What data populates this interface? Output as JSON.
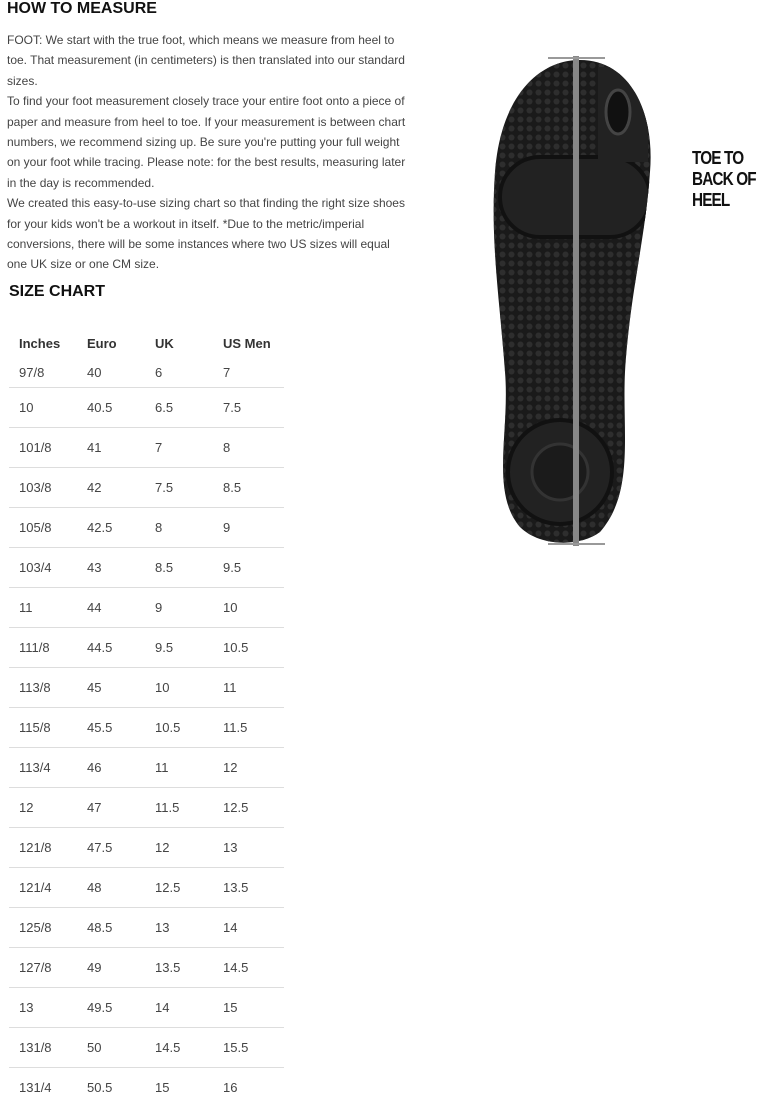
{
  "how_to_measure": {
    "title": "HOW TO MEASURE",
    "paragraphs": [
      "FOOT: We start with the true foot, which means we measure from heel to toe. That measurement (in centimeters) is then translated into our standard sizes.",
      "To find your foot measurement closely trace your entire foot onto a piece of paper and measure from heel to toe. If your measurement is between chart numbers, we recommend sizing up. Be sure you're putting your full weight on your foot while tracing. Please note: for the best results, measuring later in the day is recommended.",
      "We created this easy-to-use sizing chart so that finding the right size shoes for your kids won't be a workout in itself. *Due to the metric/imperial conversions, there will be some instances where two US sizes will equal one UK size or one CM size."
    ]
  },
  "size_chart": {
    "title": "SIZE CHART",
    "headers": [
      "Inches",
      "Euro",
      "UK",
      "US Men"
    ],
    "rows": [
      [
        "97/8",
        "40",
        "6",
        "7"
      ],
      [
        "10",
        "40.5",
        "6.5",
        "7.5"
      ],
      [
        "101/8",
        "41",
        "7",
        "8"
      ],
      [
        "103/8",
        "42",
        "7.5",
        "8.5"
      ],
      [
        "105/8",
        "42.5",
        "8",
        "9"
      ],
      [
        "103/4",
        "43",
        "8.5",
        "9.5"
      ],
      [
        "11",
        "44",
        "9",
        "10"
      ],
      [
        "111/8",
        "44.5",
        "9.5",
        "10.5"
      ],
      [
        "113/8",
        "45",
        "10",
        "11"
      ],
      [
        "115/8",
        "45.5",
        "10.5",
        "11.5"
      ],
      [
        "113/4",
        "46",
        "11",
        "12"
      ],
      [
        "12",
        "47",
        "11.5",
        "12.5"
      ],
      [
        "121/8",
        "47.5",
        "12",
        "13"
      ],
      [
        "121/4",
        "48",
        "12.5",
        "13.5"
      ],
      [
        "125/8",
        "48.5",
        "13",
        "14"
      ],
      [
        "127/8",
        "49",
        "13.5",
        "14.5"
      ],
      [
        "13",
        "49.5",
        "14",
        "15"
      ],
      [
        "131/8",
        "50",
        "14.5",
        "15.5"
      ],
      [
        "131/4",
        "50.5",
        "15",
        "16"
      ]
    ]
  },
  "image": {
    "label": [
      "TOE TO",
      "BACK OF",
      "HEEL"
    ]
  }
}
